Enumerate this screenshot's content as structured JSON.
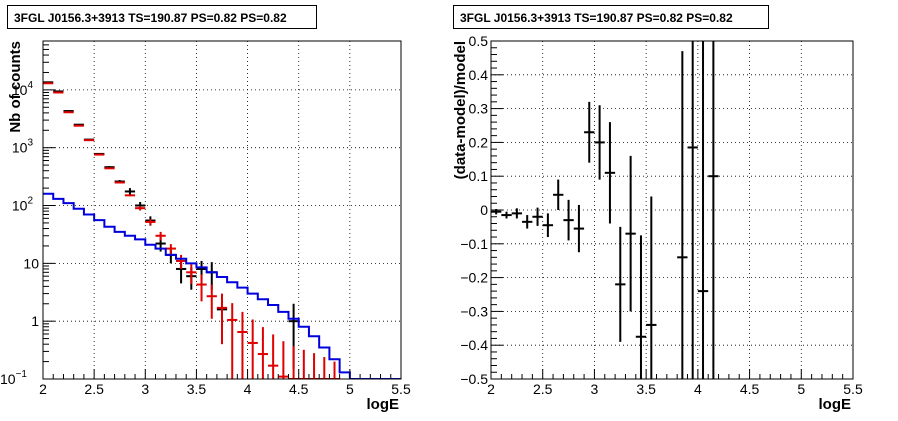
{
  "chart_data": [
    {
      "type": "histogram",
      "title": "3FGL J0156.3+3913 TS=190.87 PS=0.82 PS=0.82",
      "xlabel": "logE",
      "ylabel": "Nb of counts",
      "xlim": [
        2,
        5.5
      ],
      "ylim": [
        0.1,
        70000
      ],
      "yscale": "log",
      "grid": true,
      "xticks": [
        "2",
        "2.5",
        "3",
        "3.5",
        "4",
        "4.5",
        "5",
        "5.5"
      ],
      "yticks": [
        {
          "value": 0.1,
          "label": "10⁻¹"
        },
        {
          "value": 1,
          "label": "1"
        },
        {
          "value": 10,
          "label": "10"
        },
        {
          "value": 100,
          "label": "10²"
        },
        {
          "value": 1000,
          "label": "10³"
        },
        {
          "value": 10000,
          "label": "10⁴"
        }
      ],
      "series": [
        {
          "color": "#000000",
          "style": "errorbar",
          "points": [
            {
              "x": 2.05,
              "y": 13500,
              "yerr": [
                116,
                116
              ]
            },
            {
              "x": 2.15,
              "y": 9400,
              "yerr": [
                97,
                97
              ]
            },
            {
              "x": 2.25,
              "y": 4300,
              "yerr": [
                66,
                66
              ]
            },
            {
              "x": 2.35,
              "y": 2500,
              "yerr": [
                50,
                50
              ]
            },
            {
              "x": 2.45,
              "y": 1380,
              "yerr": [
                37,
                37
              ]
            },
            {
              "x": 2.55,
              "y": 780,
              "yerr": [
                28,
                28
              ]
            },
            {
              "x": 2.65,
              "y": 460,
              "yerr": [
                21,
                21
              ]
            },
            {
              "x": 2.75,
              "y": 260,
              "yerr": [
                16,
                16
              ]
            },
            {
              "x": 2.85,
              "y": 175,
              "yerr": [
                25,
                25
              ]
            },
            {
              "x": 2.95,
              "y": 100,
              "yerr": [
                15,
                15
              ]
            },
            {
              "x": 3.05,
              "y": 55,
              "yerr": [
                10,
                10
              ]
            },
            {
              "x": 3.15,
              "y": 22,
              "yerr": [
                6,
                6
              ]
            },
            {
              "x": 3.25,
              "y": 14,
              "yerr": [
                4,
                4
              ]
            },
            {
              "x": 3.35,
              "y": 8,
              "yerr": [
                3.5,
                3.5
              ]
            },
            {
              "x": 3.45,
              "y": 6,
              "yerr": [
                2.5,
                2.5
              ]
            },
            {
              "x": 3.55,
              "y": 8,
              "yerr": [
                3,
                3
              ]
            },
            {
              "x": 3.65,
              "y": 7,
              "yerr": [
                3.5,
                3.5
              ]
            },
            {
              "x": 3.75,
              "y": 1.6,
              "yerr": [
                1.05,
                1.0
              ]
            },
            {
              "x": 4.45,
              "y": 1.0,
              "yerr": [
                0.85,
                1.0
              ]
            }
          ]
        },
        {
          "color": "#e00000",
          "style": "errorbar",
          "points": [
            {
              "x": 2.05,
              "y": 13000,
              "yerr": [
                0,
                0
              ]
            },
            {
              "x": 2.15,
              "y": 9000,
              "yerr": [
                0,
                0
              ]
            },
            {
              "x": 2.25,
              "y": 4100,
              "yerr": [
                0,
                0
              ]
            },
            {
              "x": 2.35,
              "y": 2400,
              "yerr": [
                0,
                0
              ]
            },
            {
              "x": 2.45,
              "y": 1350,
              "yerr": [
                0,
                0
              ]
            },
            {
              "x": 2.55,
              "y": 760,
              "yerr": [
                0,
                0
              ]
            },
            {
              "x": 2.65,
              "y": 440,
              "yerr": [
                0,
                0
              ]
            },
            {
              "x": 2.75,
              "y": 250,
              "yerr": [
                0,
                0
              ]
            },
            {
              "x": 2.85,
              "y": 150,
              "yerr": [
                0,
                0
              ]
            },
            {
              "x": 2.95,
              "y": 90,
              "yerr": [
                8,
                8
              ]
            },
            {
              "x": 3.05,
              "y": 52,
              "yerr": [
                6,
                6
              ]
            },
            {
              "x": 3.15,
              "y": 30,
              "yerr": [
                5,
                5
              ]
            },
            {
              "x": 3.25,
              "y": 18,
              "yerr": [
                3.5,
                3.5
              ]
            },
            {
              "x": 3.35,
              "y": 11,
              "yerr": [
                3,
                3
              ]
            },
            {
              "x": 3.45,
              "y": 7,
              "yerr": [
                2.6,
                2.6
              ]
            },
            {
              "x": 3.55,
              "y": 4.3,
              "yerr": [
                2.1,
                2.1
              ]
            },
            {
              "x": 3.65,
              "y": 2.7,
              "yerr": [
                1.6,
                1.6
              ]
            },
            {
              "x": 3.75,
              "y": 1.7,
              "yerr": [
                1.3,
                1.3
              ]
            },
            {
              "x": 3.85,
              "y": 1.05,
              "yerr": [
                1.0,
                1.0
              ]
            },
            {
              "x": 3.95,
              "y": 0.65,
              "yerr": [
                0.64,
                0.8
              ]
            },
            {
              "x": 4.05,
              "y": 0.42,
              "yerr": [
                0.41,
                0.65
              ]
            },
            {
              "x": 4.15,
              "y": 0.27,
              "yerr": [
                0.26,
                0.52
              ]
            },
            {
              "x": 4.25,
              "y": 0.17,
              "yerr": [
                0.16,
                0.42
              ]
            },
            {
              "x": 4.35,
              "y": 0.11,
              "yerr": [
                0.1,
                0.34
              ]
            },
            {
              "x": 4.45,
              "y": 0.1,
              "yerr": [
                0.0,
                0.27
              ]
            },
            {
              "x": 4.55,
              "y": 0.1,
              "yerr": [
                0.0,
                0.22
              ]
            },
            {
              "x": 4.65,
              "y": 0.1,
              "yerr": [
                0.0,
                0.18
              ]
            },
            {
              "x": 4.75,
              "y": 0.1,
              "yerr": [
                0.0,
                0.14
              ]
            },
            {
              "x": 4.85,
              "y": 0.1,
              "yerr": [
                0.0,
                0.1
              ]
            }
          ]
        },
        {
          "color": "#0000dd",
          "style": "step",
          "bin_edges": [
            2.0,
            2.1,
            2.2,
            2.3,
            2.4,
            2.5,
            2.6,
            2.7,
            2.8,
            2.9,
            3.0,
            3.1,
            3.2,
            3.3,
            3.4,
            3.5,
            3.6,
            3.7,
            3.8,
            3.9,
            4.0,
            4.1,
            4.2,
            4.3,
            4.4,
            4.5,
            4.6,
            4.7,
            4.8,
            4.9,
            5.0,
            5.1,
            5.2,
            5.3,
            5.4,
            5.5
          ],
          "values": [
            160,
            130,
            110,
            88,
            70,
            56,
            43,
            35,
            30,
            26,
            21,
            18,
            14,
            12,
            10,
            8.5,
            7,
            5.8,
            4.7,
            3.8,
            3.0,
            2.4,
            1.9,
            1.45,
            1.1,
            0.8,
            0.55,
            0.35,
            0.22,
            0.13,
            0.1,
            0.1,
            0.1,
            0.1,
            0.1
          ]
        }
      ]
    },
    {
      "type": "scatter",
      "title": "3FGL J0156.3+3913 TS=190.87 PS=0.82 PS=0.82",
      "xlabel": "logE",
      "ylabel": "(data-model)/model",
      "xlim": [
        2,
        5.5
      ],
      "ylim": [
        -0.5,
        0.5
      ],
      "yscale": "linear",
      "grid": true,
      "xticks": [
        "2",
        "2.5",
        "3",
        "3.5",
        "4",
        "4.5",
        "5",
        "5.5"
      ],
      "yticks": [
        "−0.5",
        "−0.4",
        "−0.3",
        "−0.2",
        "−0.1",
        "0",
        "0.1",
        "0.2",
        "0.3",
        "0.4",
        "0.5"
      ],
      "series": [
        {
          "color": "#000000",
          "style": "errorbar",
          "points": [
            {
              "x": 2.05,
              "y": -0.005,
              "yerr": 0.008
            },
            {
              "x": 2.15,
              "y": -0.015,
              "yerr": 0.01
            },
            {
              "x": 2.25,
              "y": -0.01,
              "yerr": 0.015
            },
            {
              "x": 2.35,
              "y": -0.035,
              "yerr": 0.02
            },
            {
              "x": 2.45,
              "y": -0.02,
              "yerr": 0.027
            },
            {
              "x": 2.55,
              "y": -0.045,
              "yerr": 0.035
            },
            {
              "x": 2.65,
              "y": 0.045,
              "yerr": 0.045
            },
            {
              "x": 2.75,
              "y": -0.03,
              "yerr": 0.06
            },
            {
              "x": 2.85,
              "y": -0.055,
              "yerr": 0.07
            },
            {
              "x": 2.95,
              "y": 0.23,
              "yerr": 0.09
            },
            {
              "x": 3.05,
              "y": 0.2,
              "yerr": 0.11
            },
            {
              "x": 3.15,
              "y": 0.11,
              "yerr": 0.15
            },
            {
              "x": 3.25,
              "y": -0.22,
              "yerr": 0.17
            },
            {
              "x": 3.35,
              "y": -0.07,
              "yerr": 0.23
            },
            {
              "x": 3.45,
              "y": -0.375,
              "yerr": 0.3
            },
            {
              "x": 3.55,
              "y": -0.34,
              "yerr": 0.38
            },
            {
              "x": 3.85,
              "y": -0.14,
              "yerr": 0.61
            },
            {
              "x": 3.95,
              "y": 0.185,
              "yerr": 0.9
            },
            {
              "x": 4.05,
              "y": -0.24,
              "yerr": 1.2
            },
            {
              "x": 4.15,
              "y": 0.1,
              "yerr": 1.5
            }
          ]
        }
      ]
    }
  ]
}
